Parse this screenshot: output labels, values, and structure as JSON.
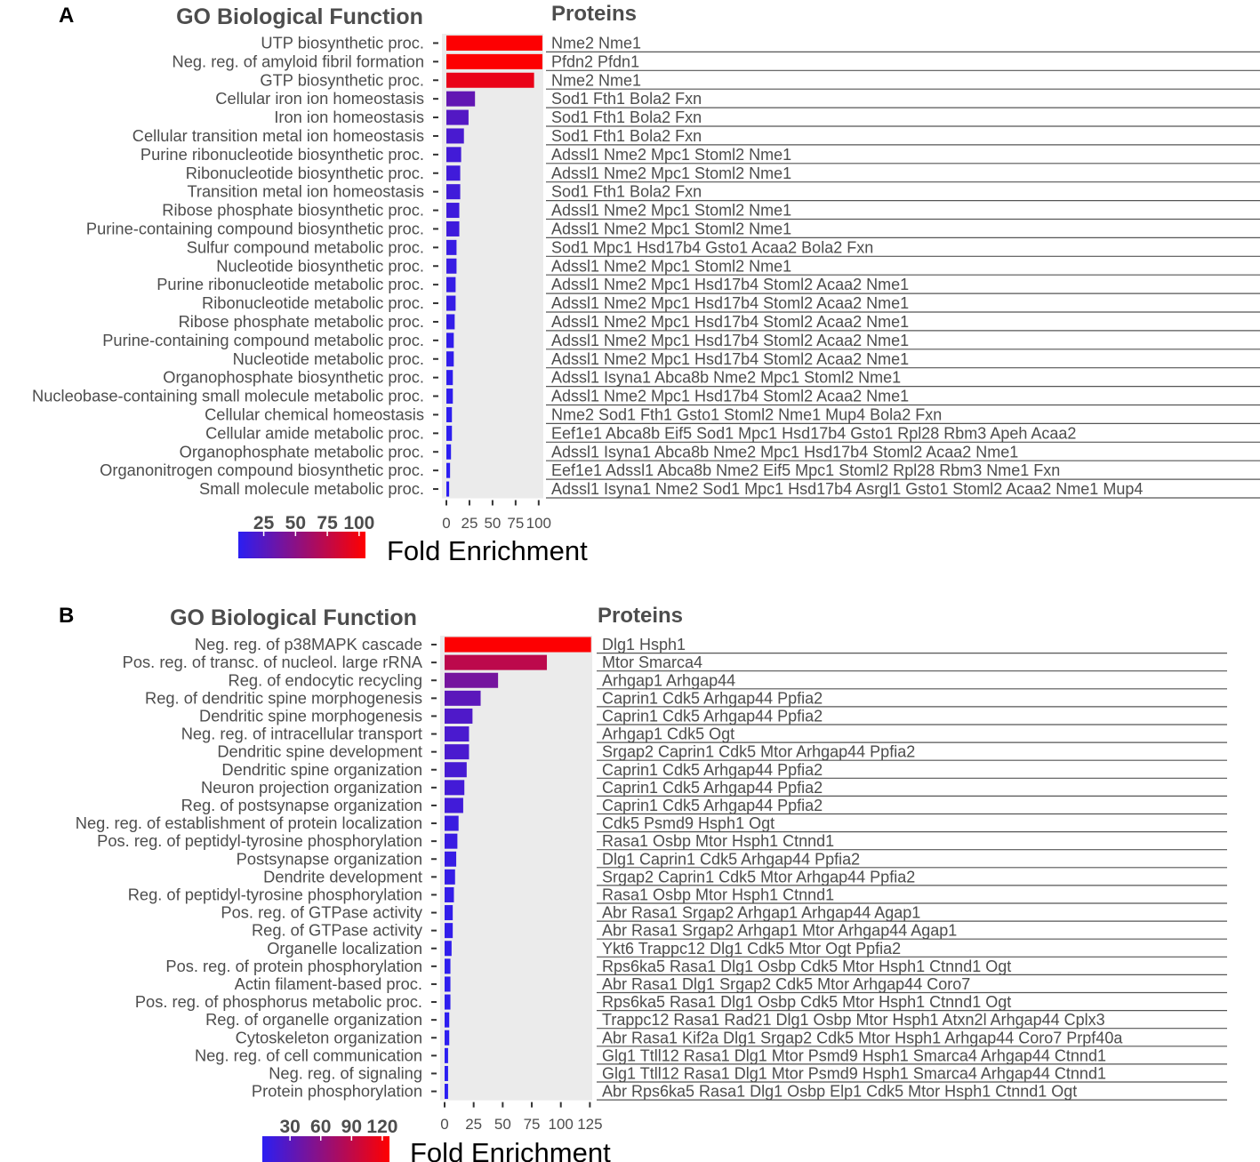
{
  "chart_data": [
    {
      "type": "bar",
      "orientation": "horizontal",
      "panel_label": "A",
      "title": "GO Biological Function",
      "proteins_header": "Proteins",
      "legend_title": "Fold Enrichment",
      "legend_ticks": [
        25,
        50,
        75,
        100
      ],
      "legend_range": [
        5,
        105
      ],
      "color_low": "#2b1ef2",
      "color_high": "#ff0000",
      "xlim": [
        0,
        105
      ],
      "xticks": [
        0,
        25,
        50,
        75,
        100
      ],
      "categories": [
        "UTP biosynthetic proc.",
        "Neg. reg. of amyloid fibril formation",
        "GTP biosynthetic proc.",
        "Cellular iron ion homeostasis",
        "Iron ion homeostasis",
        "Cellular transition metal ion homeostasis",
        "Purine ribonucleotide biosynthetic proc.",
        "Ribonucleotide biosynthetic proc.",
        "Transition metal ion homeostasis",
        "Ribose phosphate biosynthetic proc.",
        "Purine-containing compound biosynthetic proc.",
        "Sulfur compound metabolic proc.",
        "Nucleotide biosynthetic proc.",
        "Purine ribonucleotide metabolic proc.",
        "Ribonucleotide metabolic proc.",
        "Ribose phosphate metabolic proc.",
        "Purine-containing compound metabolic proc.",
        "Nucleotide metabolic proc.",
        "Organophosphate biosynthetic proc.",
        "Nucleobase-containing small molecule metabolic proc.",
        "Cellular chemical homeostasis",
        "Cellular amide metabolic proc.",
        "Organophosphate metabolic proc.",
        "Organonitrogen compound biosynthetic proc.",
        "Small molecule metabolic proc."
      ],
      "values": [
        104,
        104,
        95,
        31,
        24,
        19,
        16,
        15,
        15,
        14,
        14,
        11,
        11,
        10,
        10,
        9,
        8,
        8,
        7,
        7,
        6,
        6,
        5,
        4,
        3
      ],
      "proteins": [
        "Nme2  Nme1",
        "Pfdn2  Pfdn1",
        "Nme2  Nme1",
        "Sod1  Fth1  Bola2  Fxn",
        "Sod1  Fth1  Bola2  Fxn",
        "Sod1  Fth1  Bola2  Fxn",
        "Adssl1  Nme2  Mpc1  Stoml2  Nme1",
        "Adssl1  Nme2  Mpc1  Stoml2  Nme1",
        "Sod1  Fth1  Bola2  Fxn",
        "Adssl1  Nme2  Mpc1  Stoml2  Nme1",
        "Adssl1  Nme2  Mpc1  Stoml2  Nme1",
        "Sod1  Mpc1  Hsd17b4  Gsto1  Acaa2  Bola2  Fxn",
        "Adssl1  Nme2  Mpc1  Stoml2  Nme1",
        "Adssl1  Nme2  Mpc1  Hsd17b4  Stoml2  Acaa2  Nme1",
        "Adssl1  Nme2  Mpc1  Hsd17b4  Stoml2  Acaa2  Nme1",
        "Adssl1  Nme2  Mpc1  Hsd17b4  Stoml2  Acaa2  Nme1",
        "Adssl1  Nme2  Mpc1  Hsd17b4  Stoml2  Acaa2  Nme1",
        "Adssl1  Nme2  Mpc1  Hsd17b4  Stoml2  Acaa2  Nme1",
        "Adssl1  Isyna1  Abca8b  Nme2  Mpc1  Stoml2  Nme1",
        "Adssl1  Nme2  Mpc1  Hsd17b4  Stoml2  Acaa2  Nme1",
        "Nme2  Sod1  Fth1  Gsto1  Stoml2  Nme1  Mup4  Bola2  Fxn",
        "Eef1e1  Abca8b  Eif5  Sod1  Mpc1  Hsd17b4  Gsto1  Rpl28  Rbm3  Apeh  Acaa2",
        "Adssl1  Isyna1  Abca8b  Nme2  Mpc1  Hsd17b4  Stoml2  Acaa2  Nme1",
        "Eef1e1  Adssl1  Abca8b  Nme2  Eif5  Mpc1  Stoml2  Rpl28  Rbm3  Nme1  Fxn",
        "Adssl1  Isyna1  Nme2  Sod1  Mpc1  Hsd17b4  Asrgl1  Gsto1  Stoml2  Acaa2  Nme1  Mup4"
      ]
    },
    {
      "type": "bar",
      "orientation": "horizontal",
      "panel_label": "B",
      "title": "GO Biological Function",
      "proteins_header": "Proteins",
      "legend_title": "Fold Enrichment",
      "legend_ticks": [
        30,
        60,
        90,
        120
      ],
      "legend_range": [
        3,
        127
      ],
      "color_low": "#2b1ef2",
      "color_high": "#ff0000",
      "xlim": [
        0,
        127
      ],
      "xticks": [
        0,
        25,
        50,
        75,
        100,
        125
      ],
      "categories": [
        "Neg. reg. of p38MAPK cascade",
        "Pos. reg. of transc. of nucleol. large rRNA",
        "Reg. of endocytic recycling",
        "Reg. of dendritic spine morphogenesis",
        "Dendritic spine morphogenesis",
        "Neg. reg. of intracellular transport",
        "Dendritic spine development",
        "Dendritic spine organization",
        "Neuron projection organization",
        "Reg. of postsynapse organization",
        "Neg. reg. of establishment of protein localization",
        "Pos. reg. of peptidyl-tyrosine phosphorylation",
        "Postsynapse organization",
        "Dendrite development",
        "Reg. of peptidyl-tyrosine phosphorylation",
        "Pos. reg. of GTPase activity",
        "Reg. of GTPase activity",
        "Organelle localization",
        "Pos. reg. of protein phosphorylation",
        "Actin filament-based proc.",
        "Pos. reg. of phosphorus metabolic proc.",
        "Reg. of organelle organization",
        "Cytoskeleton organization",
        "Neg. reg. of cell communication",
        "Neg. reg. of signaling",
        "Protein phosphorylation"
      ],
      "values": [
        126,
        88,
        46,
        31,
        24,
        21,
        21,
        19,
        17,
        16,
        12,
        11,
        10,
        9,
        8,
        7,
        7,
        6,
        5,
        5,
        5,
        4,
        4,
        3,
        3,
        3
      ],
      "proteins": [
        "Dlg1  Hsph1",
        "Mtor  Smarca4",
        "Arhgap1  Arhgap44",
        "Caprin1  Cdk5  Arhgap44  Ppfia2",
        "Caprin1  Cdk5  Arhgap44  Ppfia2",
        "Arhgap1  Cdk5  Ogt",
        "Srgap2  Caprin1  Cdk5  Mtor  Arhgap44  Ppfia2",
        "Caprin1  Cdk5  Arhgap44  Ppfia2",
        "Caprin1  Cdk5  Arhgap44  Ppfia2",
        "Caprin1  Cdk5  Arhgap44  Ppfia2",
        "Cdk5  Psmd9  Hsph1  Ogt",
        "Rasa1  Osbp  Mtor  Hsph1  Ctnnd1",
        "Dlg1  Caprin1  Cdk5  Arhgap44  Ppfia2",
        "Srgap2  Caprin1  Cdk5  Mtor  Arhgap44  Ppfia2",
        "Rasa1  Osbp  Mtor  Hsph1  Ctnnd1",
        "Abr  Rasa1  Srgap2  Arhgap1  Arhgap44  Agap1",
        "Abr  Rasa1  Srgap2  Arhgap1  Mtor  Arhgap44  Agap1",
        "Ykt6  Trappc12  Dlg1  Cdk5  Mtor  Ogt  Ppfia2",
        "Rps6ka5  Rasa1  Dlg1  Osbp  Cdk5  Mtor  Hsph1  Ctnnd1  Ogt",
        "Abr  Rasa1  Dlg1  Srgap2  Cdk5  Mtor  Arhgap44  Coro7",
        "Rps6ka5  Rasa1  Dlg1  Osbp  Cdk5  Mtor  Hsph1  Ctnnd1  Ogt",
        "Trappc12  Rasa1  Rad21  Dlg1  Osbp  Mtor  Hsph1  Atxn2l  Arhgap44  Cplx3",
        "Abr  Rasa1  Kif2a  Dlg1  Srgap2  Cdk5  Mtor  Hsph1  Arhgap44  Coro7  Prpf40a",
        "Glg1  Ttll12  Rasa1  Dlg1  Mtor  Psmd9  Hsph1  Smarca4  Arhgap44  Ctnnd1",
        "Glg1  Ttll12  Rasa1  Dlg1  Mtor  Psmd9  Hsph1  Smarca4  Arhgap44  Ctnnd1",
        "Abr  Rps6ka5  Rasa1  Dlg1  Osbp  Elp1  Cdk5  Mtor  Hsph1  Ctnnd1  Ogt"
      ]
    }
  ]
}
